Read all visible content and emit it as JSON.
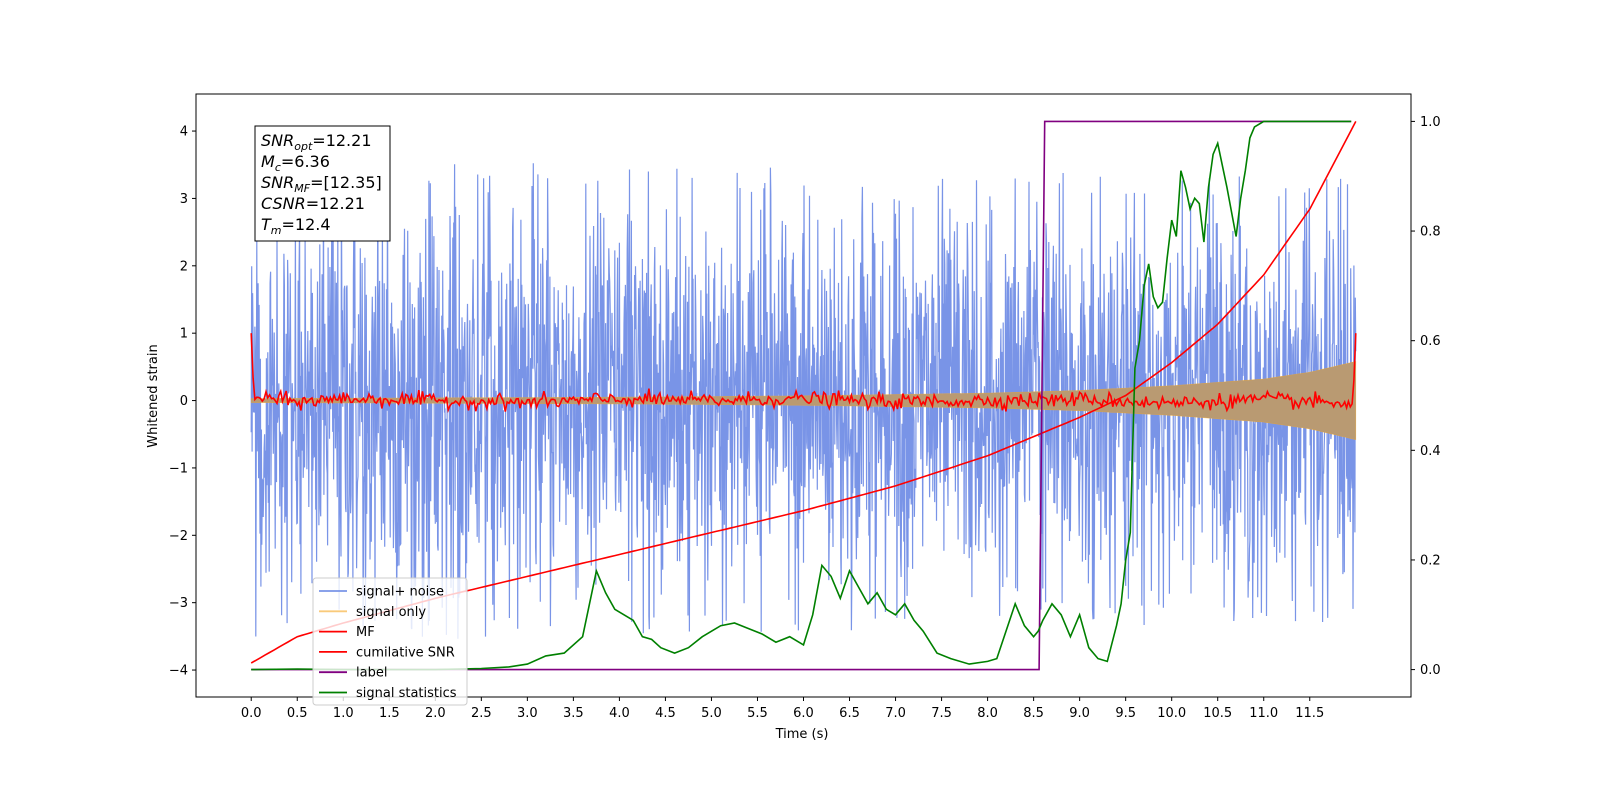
{
  "chart_data": {
    "type": "line",
    "xlabel": "Time (s)",
    "ylabel": "Whitened strain",
    "xlim": [
      -0.6,
      12.6
    ],
    "ylim": [
      -4.4,
      4.55
    ],
    "y2lim": [
      -0.05,
      1.05
    ],
    "xticks": [
      "0.0",
      "0.5",
      "1.0",
      "1.5",
      "2.0",
      "2.5",
      "3.0",
      "3.5",
      "4.0",
      "4.5",
      "5.0",
      "5.5",
      "6.0",
      "6.5",
      "7.0",
      "7.5",
      "8.0",
      "8.5",
      "9.0",
      "9.5",
      "10.0",
      "10.5",
      "11.0",
      "11.5"
    ],
    "yticks": [
      "4",
      "3",
      "2",
      "1",
      "0",
      "−1",
      "−2",
      "−3",
      "−4"
    ],
    "y2ticks": [
      "1.0",
      "0.8",
      "0.6",
      "0.4",
      "0.2",
      "0.0"
    ],
    "legend_position": "lower left",
    "legend": [
      "signal+ noise",
      "signal only",
      "MF",
      "cumilative SNR",
      "label",
      "signal statistics"
    ],
    "annotation": {
      "lines": [
        {
          "main": "SNR",
          "sub": "opt",
          "rest": "=12.21"
        },
        {
          "main": "M",
          "sub": "c",
          "rest": "=6.36"
        },
        {
          "main": "SNR",
          "sub": "MF",
          "rest": "=[12.35]"
        },
        {
          "main": "CSNR",
          "sub": "",
          "rest": "=12.21"
        },
        {
          "main": "T",
          "sub": "m",
          "rest": "=12.4"
        }
      ]
    },
    "colors": {
      "signal_noise": "#7994e7",
      "signal_only": "#f5a623",
      "signal_fill": "#b99a72",
      "mf": "#ff0000",
      "csnr": "#ff0000",
      "label": "#800080",
      "stats": "#008000"
    },
    "series": [
      {
        "name": "signal+ noise",
        "axis": "left",
        "kind": "noise",
        "x_range": [
          0,
          12
        ],
        "envelope": [
          [
            0,
            3.6
          ],
          [
            12,
            3.3
          ]
        ]
      },
      {
        "name": "signal only",
        "axis": "left",
        "kind": "chirp-envelope",
        "x": [
          0,
          2,
          4,
          6,
          8,
          9,
          10,
          11,
          11.5,
          12
        ],
        "amplitude": [
          0.03,
          0.04,
          0.05,
          0.07,
          0.11,
          0.15,
          0.22,
          0.32,
          0.42,
          0.58
        ]
      },
      {
        "name": "MF",
        "axis": "left",
        "kind": "line",
        "x": [
          0,
          0.03,
          0.06,
          0.5,
          1,
          2,
          3,
          4,
          5,
          6,
          7,
          8,
          9,
          10,
          11,
          11.9,
          11.97,
          12
        ],
        "y": [
          1.0,
          0.0,
          0.05,
          -0.02,
          0.03,
          0.0,
          -0.03,
          0.02,
          0.0,
          0.03,
          -0.02,
          0.0,
          0.02,
          -0.04,
          0.02,
          -0.05,
          -0.05,
          1.0
        ]
      },
      {
        "name": "cumilative SNR",
        "axis": "right",
        "kind": "line",
        "x": [
          0,
          0.5,
          1,
          2,
          3,
          4,
          5,
          6,
          7,
          8,
          9,
          9.5,
          10,
          10.5,
          11,
          11.5,
          12
        ],
        "y": [
          0.012,
          0.06,
          0.085,
          0.13,
          0.17,
          0.21,
          0.25,
          0.29,
          0.335,
          0.39,
          0.46,
          0.5,
          0.56,
          0.63,
          0.72,
          0.84,
          1.0
        ]
      },
      {
        "name": "label",
        "axis": "right",
        "kind": "line",
        "x": [
          0,
          8.56,
          8.62,
          11.95
        ],
        "y": [
          0,
          0,
          1,
          1
        ]
      },
      {
        "name": "signal statistics",
        "axis": "right",
        "kind": "line",
        "x": [
          0,
          0.5,
          1,
          1.5,
          2,
          2.5,
          2.8,
          3.0,
          3.2,
          3.4,
          3.6,
          3.65,
          3.75,
          3.85,
          3.95,
          4.05,
          4.15,
          4.25,
          4.35,
          4.45,
          4.6,
          4.75,
          4.9,
          5.0,
          5.1,
          5.25,
          5.4,
          5.55,
          5.7,
          5.85,
          6.0,
          6.1,
          6.2,
          6.3,
          6.4,
          6.5,
          6.6,
          6.7,
          6.8,
          6.9,
          7.0,
          7.1,
          7.2,
          7.3,
          7.45,
          7.6,
          7.8,
          8.0,
          8.1,
          8.3,
          8.4,
          8.5,
          8.55,
          8.6,
          8.7,
          8.8,
          8.9,
          9.0,
          9.1,
          9.2,
          9.3,
          9.4,
          9.45,
          9.5,
          9.55,
          9.6,
          9.65,
          9.7,
          9.75,
          9.8,
          9.85,
          9.9,
          9.95,
          10.0,
          10.05,
          10.1,
          10.15,
          10.2,
          10.25,
          10.3,
          10.35,
          10.4,
          10.45,
          10.5,
          10.6,
          10.7,
          10.75,
          10.8,
          10.85,
          10.9,
          11.0,
          11.2,
          11.5,
          11.95
        ],
        "y": [
          0.0,
          0.001,
          0.0,
          0.0,
          0.0,
          0.002,
          0.005,
          0.01,
          0.025,
          0.03,
          0.06,
          0.1,
          0.18,
          0.14,
          0.11,
          0.1,
          0.09,
          0.06,
          0.055,
          0.04,
          0.03,
          0.04,
          0.06,
          0.07,
          0.08,
          0.085,
          0.075,
          0.065,
          0.05,
          0.06,
          0.045,
          0.1,
          0.19,
          0.17,
          0.13,
          0.18,
          0.15,
          0.12,
          0.14,
          0.11,
          0.1,
          0.12,
          0.09,
          0.07,
          0.03,
          0.02,
          0.01,
          0.015,
          0.02,
          0.12,
          0.08,
          0.06,
          0.07,
          0.09,
          0.12,
          0.1,
          0.06,
          0.1,
          0.04,
          0.02,
          0.015,
          0.08,
          0.12,
          0.2,
          0.25,
          0.55,
          0.6,
          0.7,
          0.74,
          0.68,
          0.66,
          0.67,
          0.75,
          0.82,
          0.79,
          0.91,
          0.88,
          0.84,
          0.86,
          0.85,
          0.78,
          0.88,
          0.94,
          0.96,
          0.88,
          0.79,
          0.86,
          0.91,
          0.97,
          0.99,
          1.0,
          1.0,
          1.0,
          1.0
        ]
      }
    ]
  }
}
